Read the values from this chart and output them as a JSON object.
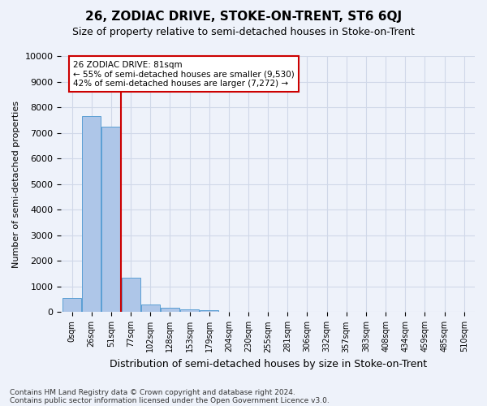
{
  "title": "26, ZODIAC DRIVE, STOKE-ON-TRENT, ST6 6QJ",
  "subtitle": "Size of property relative to semi-detached houses in Stoke-on-Trent",
  "xlabel": "Distribution of semi-detached houses by size in Stoke-on-Trent",
  "ylabel": "Number of semi-detached properties",
  "footnote1": "Contains HM Land Registry data © Crown copyright and database right 2024.",
  "footnote2": "Contains public sector information licensed under the Open Government Licence v3.0.",
  "bin_labels": [
    "0sqm",
    "26sqm",
    "51sqm",
    "77sqm",
    "102sqm",
    "128sqm",
    "153sqm",
    "179sqm",
    "204sqm",
    "230sqm",
    "255sqm",
    "281sqm",
    "306sqm",
    "332sqm",
    "357sqm",
    "383sqm",
    "408sqm",
    "434sqm",
    "459sqm",
    "485sqm",
    "510sqm"
  ],
  "bar_values": [
    550,
    7650,
    7250,
    1350,
    300,
    170,
    110,
    80,
    0,
    0,
    0,
    0,
    0,
    0,
    0,
    0,
    0,
    0,
    0,
    0,
    0
  ],
  "bar_color": "#aec6e8",
  "bar_edge_color": "#5a9fd4",
  "ylim": [
    0,
    10000
  ],
  "yticks": [
    0,
    1000,
    2000,
    3000,
    4000,
    5000,
    6000,
    7000,
    8000,
    9000,
    10000
  ],
  "red_line_color": "#cc0000",
  "annotation_text1": "26 ZODIAC DRIVE: 81sqm",
  "annotation_text2": "← 55% of semi-detached houses are smaller (9,530)",
  "annotation_text3": "42% of semi-detached houses are larger (7,272) →",
  "annotation_box_color": "#ffffff",
  "annotation_box_edge": "#cc0000",
  "grid_color": "#d0d8e8",
  "background_color": "#eef2fa"
}
